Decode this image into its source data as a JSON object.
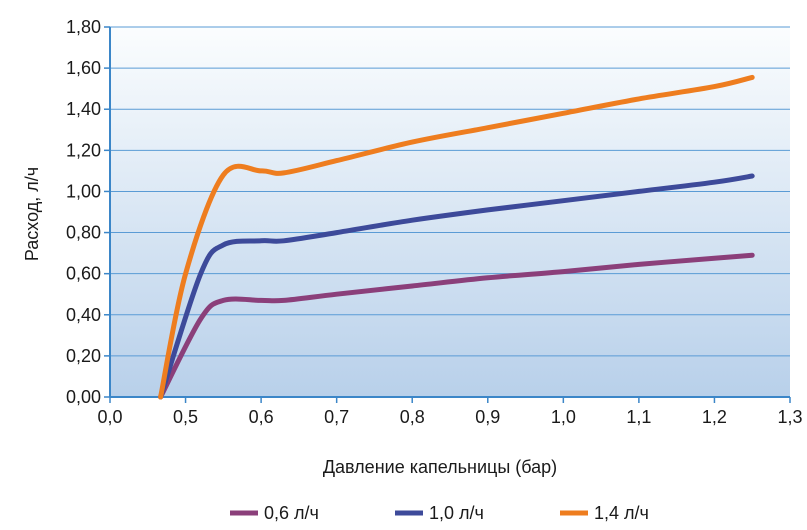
{
  "chart_data": {
    "type": "line",
    "xlabel": "Давление капельницы (бар)",
    "ylabel": "Расход, л/ч",
    "xlim": [
      0.0,
      1.3
    ],
    "ylim": [
      0.0,
      1.8
    ],
    "x_ticks": [
      "0,0",
      "0,5",
      "0,6",
      "0,7",
      "0,8",
      "0,9",
      "1,0",
      "1,1",
      "1,2",
      "1,3"
    ],
    "y_ticks": [
      "0,00",
      "0,20",
      "0,40",
      "0,60",
      "0,80",
      "1,00",
      "1,20",
      "1,40",
      "1,60",
      "1,80"
    ],
    "grid": "horizontal",
    "legend_position": "bottom",
    "series": [
      {
        "name": "0,6 л/ч",
        "color": "#8b3f7a",
        "points": [
          [
            0.44,
            0.0
          ],
          [
            0.52,
            0.38
          ],
          [
            0.55,
            0.47
          ],
          [
            0.6,
            0.47
          ],
          [
            0.63,
            0.47
          ],
          [
            0.7,
            0.5
          ],
          [
            0.8,
            0.54
          ],
          [
            0.9,
            0.58
          ],
          [
            1.0,
            0.61
          ],
          [
            1.1,
            0.645
          ],
          [
            1.2,
            0.675
          ],
          [
            1.25,
            0.69
          ]
        ]
      },
      {
        "name": "1,0 л/ч",
        "color": "#3d4a9a",
        "points": [
          [
            0.44,
            0.0
          ],
          [
            0.52,
            0.6
          ],
          [
            0.55,
            0.74
          ],
          [
            0.6,
            0.76
          ],
          [
            0.63,
            0.76
          ],
          [
            0.7,
            0.8
          ],
          [
            0.8,
            0.86
          ],
          [
            0.9,
            0.91
          ],
          [
            1.0,
            0.955
          ],
          [
            1.1,
            1.0
          ],
          [
            1.2,
            1.045
          ],
          [
            1.25,
            1.075
          ]
        ]
      },
      {
        "name": "1,4 л/ч",
        "color": "#ee7d1f",
        "points": [
          [
            0.44,
            0.0
          ],
          [
            0.5,
            0.6
          ],
          [
            0.55,
            1.08
          ],
          [
            0.6,
            1.1
          ],
          [
            0.63,
            1.09
          ],
          [
            0.7,
            1.15
          ],
          [
            0.8,
            1.24
          ],
          [
            0.9,
            1.31
          ],
          [
            1.0,
            1.38
          ],
          [
            1.1,
            1.45
          ],
          [
            1.2,
            1.51
          ],
          [
            1.25,
            1.555
          ]
        ]
      }
    ]
  }
}
